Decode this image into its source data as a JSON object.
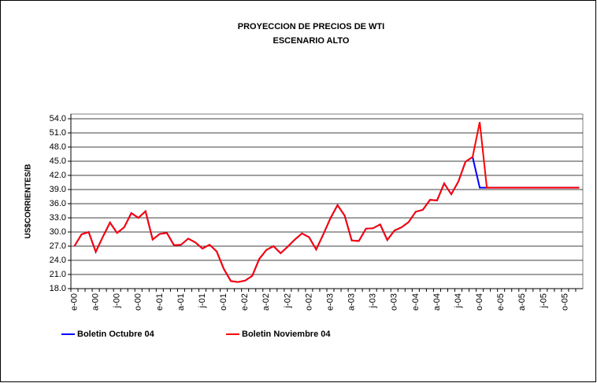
{
  "chart_data": {
    "type": "line",
    "title": "PROYECCION DE PRECIOS DE WTI",
    "subtitle": "ESCENARIO ALTO",
    "y_label": "US$CORRIENTES/B",
    "categories": [
      "e-00",
      null,
      null,
      "a-00",
      null,
      null,
      "j-00",
      null,
      null,
      "o-00",
      null,
      null,
      "e-01",
      null,
      null,
      "a-01",
      null,
      null,
      "j-01",
      null,
      null,
      "o-01",
      null,
      null,
      "e-02",
      null,
      null,
      "a-02",
      null,
      null,
      "j-02",
      null,
      null,
      "o-02",
      null,
      null,
      "e-03",
      null,
      null,
      "a-03",
      null,
      null,
      "j-03",
      null,
      null,
      "o-03",
      null,
      null,
      "e-04",
      null,
      null,
      "a-04",
      null,
      null,
      "j-04",
      null,
      null,
      "o-04",
      null,
      null,
      "e-05",
      null,
      null,
      "a-05",
      null,
      null,
      "j-05",
      null,
      null,
      "o-05",
      null,
      null
    ],
    "series": [
      {
        "name": "Boletin Octubre  04",
        "color": "#0000ff",
        "values": [
          27,
          29.5,
          30,
          25.8,
          29,
          32,
          29.8,
          31,
          34,
          33,
          34.4,
          28.4,
          29.6,
          29.8,
          27.2,
          27.3,
          28.6,
          27.8,
          26.5,
          27.3,
          25.9,
          22.2,
          19.6,
          19.4,
          19.7,
          20.7,
          24.3,
          26.2,
          27,
          25.5,
          26.9,
          28.4,
          29.7,
          28.9,
          26.3,
          29.5,
          32.9,
          35.7,
          33.5,
          28.2,
          28.1,
          30.7,
          30.8,
          31.6,
          28.3,
          30.3,
          31,
          32.1,
          34.3,
          34.7,
          36.8,
          36.7,
          40.3,
          38,
          40.7,
          44.9,
          45.9,
          39.4,
          39.4,
          39.4,
          39.4,
          39.4,
          39.4,
          39.4,
          39.4,
          39.4,
          39.4,
          39.4,
          39.4,
          39.4,
          39.4,
          39.4
        ]
      },
      {
        "name": "Boletin Noviembre  04",
        "color": "#ff0000",
        "values": [
          27,
          29.5,
          30,
          25.8,
          29,
          32,
          29.8,
          31,
          34,
          33,
          34.4,
          28.4,
          29.6,
          29.8,
          27.2,
          27.3,
          28.6,
          27.8,
          26.5,
          27.3,
          25.9,
          22.2,
          19.6,
          19.4,
          19.7,
          20.7,
          24.3,
          26.2,
          27,
          25.5,
          26.9,
          28.4,
          29.7,
          28.9,
          26.3,
          29.5,
          32.9,
          35.7,
          33.5,
          28.2,
          28.1,
          30.7,
          30.8,
          31.6,
          28.3,
          30.3,
          31,
          32.1,
          34.3,
          34.7,
          36.8,
          36.7,
          40.3,
          38,
          40.7,
          44.9,
          45.9,
          53.3,
          39.4,
          39.4,
          39.4,
          39.4,
          39.4,
          39.4,
          39.4,
          39.4,
          39.4,
          39.4,
          39.4,
          39.4,
          39.4,
          39.4
        ]
      }
    ],
    "ylim": [
      18,
      55
    ],
    "yticks": [
      {
        "value": 18,
        "label": "18.0"
      },
      {
        "value": 21,
        "label": "21.0"
      },
      {
        "value": 24,
        "label": "24.0"
      },
      {
        "value": 27,
        "label": "27.0"
      },
      {
        "value": 30,
        "label": "30.0"
      },
      {
        "value": 33,
        "label": "33.0"
      },
      {
        "value": 36,
        "label": "36.0"
      },
      {
        "value": 39,
        "label": "39.0"
      },
      {
        "value": 42,
        "label": "42.0"
      },
      {
        "value": 45,
        "label": "45.0"
      },
      {
        "value": 48,
        "label": "48.0"
      },
      {
        "value": 51,
        "label": "51.0"
      },
      {
        "value": 54,
        "label": "54.0"
      }
    ],
    "grid": true,
    "legend": "bottom"
  }
}
